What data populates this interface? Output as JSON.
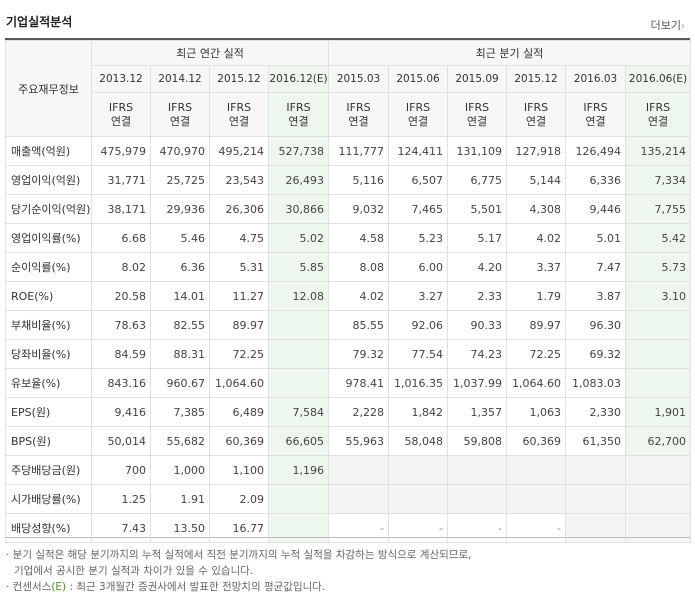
{
  "header": {
    "title": "기업실적분석",
    "more": "더보기",
    "more_arrow": "›"
  },
  "table": {
    "row_header": "주요재무정보",
    "group_annual": "최근 연간 실적",
    "group_quarter": "최근 분기 실적",
    "periods": [
      "2013.12",
      "2014.12",
      "2015.12",
      "2016.12(E)",
      "2015.03",
      "2015.06",
      "2015.09",
      "2015.12",
      "2016.03",
      "2016.06(E)"
    ],
    "ifrs_top": "IFRS",
    "ifrs_bottom": "연결",
    "rows": [
      {
        "label": "매출액(억원)",
        "values": [
          "475,979",
          "470,970",
          "495,214",
          "527,738",
          "111,777",
          "124,411",
          "131,109",
          "127,918",
          "126,494",
          "135,214"
        ]
      },
      {
        "label": "영업이익(억원)",
        "values": [
          "31,771",
          "25,725",
          "23,543",
          "26,493",
          "5,116",
          "6,507",
          "6,775",
          "5,144",
          "6,336",
          "7,334"
        ]
      },
      {
        "label": "당기순이익(억원)",
        "values": [
          "38,171",
          "29,936",
          "26,306",
          "30,866",
          "9,032",
          "7,465",
          "5,501",
          "4,308",
          "9,446",
          "7,755"
        ]
      },
      {
        "label": "영업이익률(%)",
        "values": [
          "6.68",
          "5.46",
          "4.75",
          "5.02",
          "4.58",
          "5.23",
          "5.17",
          "4.02",
          "5.01",
          "5.42"
        ]
      },
      {
        "label": "순이익률(%)",
        "values": [
          "8.02",
          "6.36",
          "5.31",
          "5.85",
          "8.08",
          "6.00",
          "4.20",
          "3.37",
          "7.47",
          "5.73"
        ]
      },
      {
        "label": "ROE(%)",
        "values": [
          "20.58",
          "14.01",
          "11.27",
          "12.08",
          "4.02",
          "3.27",
          "2.33",
          "1.79",
          "3.87",
          "3.10"
        ]
      },
      {
        "label": "부채비율(%)",
        "values": [
          "78.63",
          "82.55",
          "89.97",
          "",
          "85.55",
          "92.06",
          "90.33",
          "89.97",
          "96.30",
          ""
        ]
      },
      {
        "label": "당좌비율(%)",
        "values": [
          "84.59",
          "88.31",
          "72.25",
          "",
          "79.32",
          "77.54",
          "74.23",
          "72.25",
          "69.32",
          ""
        ]
      },
      {
        "label": "유보율(%)",
        "values": [
          "843.16",
          "960.67",
          "1,064.60",
          "",
          "978.41",
          "1,016.35",
          "1,037.99",
          "1,064.60",
          "1,083.03",
          ""
        ]
      },
      {
        "label": "EPS(원)",
        "values": [
          "9,416",
          "7,385",
          "6,489",
          "7,584",
          "2,228",
          "1,842",
          "1,357",
          "1,063",
          "2,330",
          "1,901"
        ]
      },
      {
        "label": "BPS(원)",
        "values": [
          "50,014",
          "55,682",
          "60,369",
          "66,605",
          "55,963",
          "58,048",
          "59,808",
          "60,369",
          "61,350",
          "62,700"
        ]
      },
      {
        "label": "주당배당금(원)",
        "values": [
          "700",
          "1,000",
          "1,100",
          "1,196",
          "",
          "",
          "",
          "",
          "",
          ""
        ]
      },
      {
        "label": "시가배당률(%)",
        "values": [
          "1.25",
          "1.91",
          "2.09",
          "",
          "",
          "",
          "",
          "",
          "",
          ""
        ]
      },
      {
        "label": "배당성향(%)",
        "values": [
          "7.43",
          "13.50",
          "16.77",
          "",
          "-",
          "-",
          "-",
          "-",
          "",
          ""
        ]
      }
    ]
  },
  "footnotes": {
    "line1": "· 분기 실적은 해당 분기까지의 누적 실적에서 직전 분기까지의 누적 실적을 차감하는 방식으로 계산되므로,",
    "line2": "기업에서 공시한 분기 실적과 차이가 있을 수 있습니다.",
    "line3_a": "· 컨센서스",
    "line3_e": "(E)",
    "line3_b": ": 최근 3개월간 증권사에서 발표한 전망치의 평균값입니다."
  }
}
